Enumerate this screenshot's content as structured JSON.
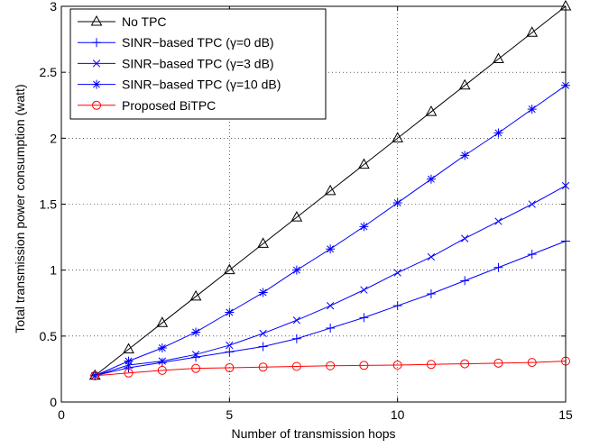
{
  "chart_data": {
    "type": "line",
    "xlabel": "Number of transmission hops",
    "ylabel": "Total transmission power consumption (watt)",
    "xlim": [
      0,
      15
    ],
    "ylim": [
      0,
      3
    ],
    "xticks": [
      0,
      5,
      10,
      15
    ],
    "yticks": [
      0,
      0.5,
      1,
      1.5,
      2,
      2.5,
      3
    ],
    "x_tick_labels": [
      "0",
      "5",
      "10",
      "15"
    ],
    "y_tick_labels": [
      "0",
      "0.5",
      "1",
      "1.5",
      "2",
      "2.5",
      "3"
    ],
    "grid": "dotted",
    "legend_position": "top-left",
    "x": [
      1,
      2,
      3,
      4,
      5,
      6,
      7,
      8,
      9,
      10,
      11,
      12,
      13,
      14,
      15
    ],
    "series": [
      {
        "name": "No TPC",
        "color": "#000000",
        "marker": "triangle",
        "values": [
          0.2,
          0.4,
          0.6,
          0.8,
          1.0,
          1.2,
          1.4,
          1.6,
          1.8,
          2.0,
          2.2,
          2.4,
          2.6,
          2.8,
          3.0
        ]
      },
      {
        "name": "SINR−based TPC (γ=0 dB)",
        "color": "#0000ff",
        "marker": "plus",
        "values": [
          0.2,
          0.26,
          0.3,
          0.34,
          0.38,
          0.42,
          0.48,
          0.56,
          0.64,
          0.73,
          0.82,
          0.92,
          1.02,
          1.12,
          1.22
        ]
      },
      {
        "name": "SINR−based TPC (γ=3 dB)",
        "color": "#0000ff",
        "marker": "x",
        "values": [
          0.2,
          0.28,
          0.31,
          0.36,
          0.43,
          0.52,
          0.62,
          0.73,
          0.85,
          0.98,
          1.1,
          1.24,
          1.37,
          1.5,
          1.64
        ]
      },
      {
        "name": "SINR−based TPC (γ=10 dB)",
        "color": "#0000ff",
        "marker": "star",
        "values": [
          0.2,
          0.31,
          0.41,
          0.53,
          0.68,
          0.83,
          1.0,
          1.16,
          1.33,
          1.51,
          1.69,
          1.87,
          2.04,
          2.22,
          2.4
        ]
      },
      {
        "name": "Proposed BiTPC",
        "color": "#ff0000",
        "marker": "circle",
        "values": [
          0.2,
          0.22,
          0.24,
          0.255,
          0.26,
          0.265,
          0.27,
          0.275,
          0.278,
          0.28,
          0.285,
          0.29,
          0.295,
          0.3,
          0.31
        ]
      }
    ]
  }
}
